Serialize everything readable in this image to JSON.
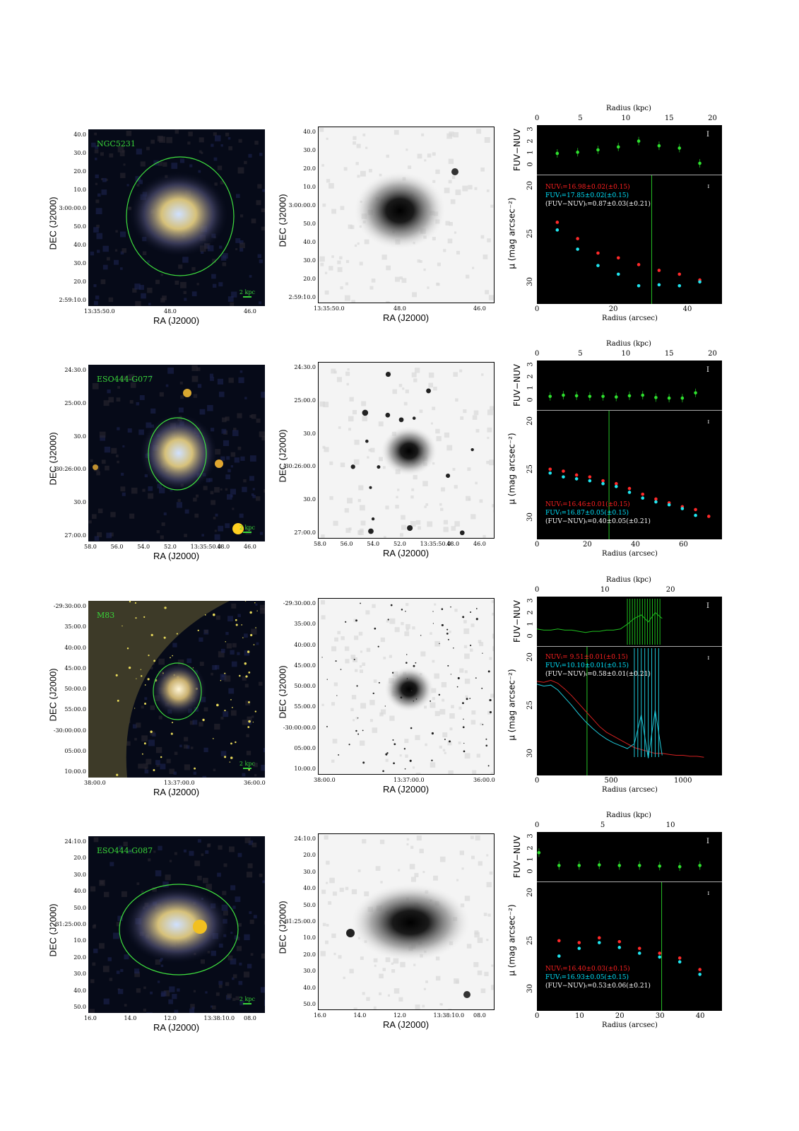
{
  "rows": [
    {
      "name": "NGC5231",
      "scale_label": "2 kpc",
      "color_img": {
        "dec_ticks": [
          "40.0",
          "30.0",
          "20.0",
          "10.0",
          "3:00:00.0",
          "50.0",
          "40.0",
          "30.0",
          "20.0",
          "2:59:10.0"
        ],
        "ra_ticks": [
          "13:35:50.0",
          "48.0",
          "46.0"
        ]
      },
      "gray_img": {
        "dec_ticks": [
          "40.0",
          "30.0",
          "20.0",
          "10.0",
          "3:00:00.0",
          "50.0",
          "40.0",
          "30.0",
          "20.0",
          "2:59:10.0"
        ],
        "ra_ticks": [
          "13:35:50.0",
          "48.0",
          "46.0"
        ]
      },
      "profile": {
        "kpc_ticks": [
          "0",
          "5",
          "10",
          "15",
          "20"
        ],
        "arcsec_ticks": [
          "0",
          "20",
          "40"
        ],
        "top_yticks": [
          "3",
          "2",
          "1",
          "0"
        ],
        "bot_yticks": [
          "20",
          "25",
          "30"
        ],
        "legend": {
          "nuv": "NUVₜ=16.98±0.02(±0.15)",
          "fuv": "FUVₜ=17.85±0.02(±0.15)",
          "col": "(FUV−NUV)ₜ=0.87±0.03(±0.21)"
        }
      }
    },
    {
      "name": "ESO444-G077",
      "scale_label": "2 kpc",
      "color_img": {
        "dec_ticks": [
          "24:30.0",
          "25:00.0",
          "30.0",
          "-30:26:00.0",
          "30.0",
          "27:00.0"
        ],
        "ra_ticks": [
          "58.0",
          "56.0",
          "54.0",
          "52.0",
          "13:35:50.0",
          "48.0",
          "46.0"
        ]
      },
      "gray_img": {
        "dec_ticks": [
          "24:30.0",
          "25:00.0",
          "30.0",
          "-30:26:00.0",
          "30.0",
          "27:00.0"
        ],
        "ra_ticks": [
          "58.0",
          "56.0",
          "54.0",
          "52.0",
          "13:35:50.0",
          "48.0",
          "46.0"
        ]
      },
      "profile": {
        "kpc_ticks": [
          "0",
          "5",
          "10",
          "15",
          "20"
        ],
        "arcsec_ticks": [
          "0",
          "20",
          "40",
          "60"
        ],
        "top_yticks": [
          "3",
          "2",
          "1",
          "0"
        ],
        "bot_yticks": [
          "20",
          "25",
          "30"
        ],
        "legend": {
          "nuv": "NUVₜ=16.46±0.01(±0.15)",
          "fuv": "FUVₜ=16.87±0.05(±0.15)",
          "col": "(FUV−NUV)ₜ=0.40±0.05(±0.21)"
        }
      }
    },
    {
      "name": "M83",
      "scale_label": "2 kpc",
      "color_img": {
        "dec_ticks": [
          "-29:30:00.0",
          "35:00.0",
          "40:00.0",
          "45:00.0",
          "50:00.0",
          "55:00.0",
          "-30:00:00.0",
          "05:00.0",
          "10:00.0"
        ],
        "ra_ticks": [
          "38:00.0",
          "13:37:00.0",
          "36:00.0"
        ]
      },
      "gray_img": {
        "dec_ticks": [
          "-29:30:00.0",
          "35:00.0",
          "40:00.0",
          "45:00.0",
          "50:00.0",
          "55:00.0",
          "-30:00:00.0",
          "05:00.0",
          "10:00.0"
        ],
        "ra_ticks": [
          "38:00.0",
          "13:37:00.0",
          "36:00.0"
        ]
      },
      "profile": {
        "kpc_ticks": [
          "0",
          "10",
          "20"
        ],
        "arcsec_ticks": [
          "0",
          "500",
          "1000"
        ],
        "top_yticks": [
          "3",
          "2",
          "1",
          "0"
        ],
        "bot_yticks": [
          "20",
          "25",
          "30"
        ],
        "legend": {
          "nuv": "NUVₜ= 9.51±0.01(±0.15)",
          "fuv": "FUVₜ=10.10±0.01(±0.15)",
          "col": "(FUV−NUV)ₜ=0.58±0.01(±0.21)"
        }
      }
    },
    {
      "name": "ESO444-G087",
      "scale_label": "2 kpc",
      "color_img": {
        "dec_ticks": [
          "24:10.0",
          "20.0",
          "30.0",
          "40.0",
          "50.0",
          "-31:25:00.0",
          "10.0",
          "20.0",
          "30.0",
          "40.0",
          "50.0"
        ],
        "ra_ticks": [
          "16.0",
          "14.0",
          "12.0",
          "13:38:10.0",
          "08.0"
        ]
      },
      "gray_img": {
        "dec_ticks": [
          "24:10.0",
          "20.0",
          "30.0",
          "40.0",
          "50.0",
          "-31:25:00.0",
          "10.0",
          "20.0",
          "30.0",
          "40.0",
          "50.0"
        ],
        "ra_ticks": [
          "16.0",
          "14.0",
          "12.0",
          "13:38:10.0",
          "08.0"
        ]
      },
      "profile": {
        "kpc_ticks": [
          "0",
          "5",
          "10"
        ],
        "arcsec_ticks": [
          "0",
          "10",
          "20",
          "30",
          "40"
        ],
        "top_yticks": [
          "3",
          "2",
          "1",
          "0"
        ],
        "bot_yticks": [
          "20",
          "25",
          "30"
        ],
        "legend": {
          "nuv": "NUVₜ=16.40±0.03(±0.15)",
          "fuv": "FUVₜ=16.93±0.05(±0.15)",
          "col": "(FUV−NUV)ₜ=0.53±0.06(±0.21)"
        }
      }
    }
  ],
  "labels": {
    "dec_axis": "DEC (J2000)",
    "ra_axis": "RA (J2000)",
    "radius_kpc": "Radius (kpc)",
    "radius_arcsec": "Radius (arcsec)",
    "color_axis": "FUV−NUV",
    "mu_axis": "μ (mag arcsec⁻²)"
  },
  "chart_data": [
    {
      "type": "scatter",
      "title": "NGC5231",
      "xlabel": "Radius (arcsec)",
      "x2label": "Radius (kpc)",
      "xlim": [
        0,
        50
      ],
      "aperture_radius": 31,
      "color_profile": {
        "ylabel": "FUV−NUV",
        "ylim": [
          -0.5,
          3
        ],
        "x": [
          5.5,
          11,
          16.5,
          22,
          27.5,
          33,
          38.5,
          44
        ],
        "y": [
          0.95,
          1.05,
          1.25,
          1.5,
          2.0,
          1.6,
          1.4,
          0.1
        ]
      },
      "surface_brightness": {
        "ylabel": "μ (mag arcsec⁻²)",
        "ylim": [
          32,
          19.5
        ],
        "series": [
          {
            "name": "NUV",
            "x": [
              5.5,
              11,
              16.5,
              22,
              27.5,
              33,
              38.5,
              44
            ],
            "y": [
              23.8,
              25.5,
              27.0,
              27.5,
              28.2,
              28.8,
              29.2,
              29.8
            ]
          },
          {
            "name": "FUV",
            "x": [
              5.5,
              11,
              16.5,
              22,
              27.5,
              33,
              38.5,
              44
            ],
            "y": [
              24.6,
              26.6,
              28.3,
              29.2,
              30.4,
              30.3,
              30.4,
              30.0
            ]
          }
        ]
      }
    },
    {
      "type": "scatter",
      "title": "ESO444-G077",
      "xlabel": "Radius (arcsec)",
      "x2label": "Radius (kpc)",
      "xlim": [
        0,
        77
      ],
      "aperture_radius": 30,
      "color_profile": {
        "ylabel": "FUV−NUV",
        "ylim": [
          -0.5,
          3
        ],
        "x": [
          5.5,
          11,
          16.5,
          22,
          27.5,
          33,
          38.5,
          44,
          49.5,
          55,
          60.5,
          66
        ],
        "y": [
          0.3,
          0.4,
          0.35,
          0.3,
          0.3,
          0.25,
          0.35,
          0.4,
          0.2,
          0.15,
          0.15,
          0.6
        ]
      },
      "surface_brightness": {
        "ylabel": "μ (mag arcsec⁻²)",
        "ylim": [
          32,
          19.5
        ],
        "series": [
          {
            "name": "NUV",
            "x": [
              5.5,
              11,
              16.5,
              22,
              27.5,
              33,
              38.5,
              44,
              49.5,
              55,
              60.5,
              66,
              71.5
            ],
            "y": [
              25.0,
              25.2,
              25.6,
              25.8,
              26.2,
              26.5,
              27.0,
              27.6,
              28.1,
              28.5,
              28.9,
              29.2,
              29.9
            ]
          },
          {
            "name": "FUV",
            "x": [
              5.5,
              11,
              16.5,
              22,
              27.5,
              33,
              38.5,
              44,
              49.5,
              55,
              60.5,
              66
            ],
            "y": [
              25.4,
              25.8,
              26.0,
              26.2,
              26.5,
              26.8,
              27.4,
              28.0,
              28.4,
              28.7,
              29.1,
              29.8
            ]
          }
        ]
      }
    },
    {
      "type": "line",
      "title": "M83",
      "xlabel": "Radius (arcsec)",
      "x2label": "Radius (kpc)",
      "xlim": [
        0,
        1330
      ],
      "aperture_radius": 360,
      "color_profile": {
        "ylabel": "FUV−NUV",
        "ylim": [
          -0.5,
          3
        ],
        "x": [
          0,
          50,
          100,
          150,
          200,
          250,
          300,
          350,
          400,
          450,
          500,
          550,
          600,
          650,
          700,
          750,
          800,
          850,
          900
        ],
        "y": [
          0.6,
          0.5,
          0.5,
          0.6,
          0.5,
          0.5,
          0.4,
          0.3,
          0.4,
          0.4,
          0.5,
          0.5,
          0.6,
          1.0,
          1.5,
          1.8,
          1.2,
          2.0,
          1.5
        ]
      },
      "surface_brightness": {
        "ylabel": "μ (mag arcsec⁻²)",
        "ylim": [
          32,
          19.5
        ],
        "series": [
          {
            "name": "NUV",
            "x": [
              0,
              50,
              100,
              150,
              200,
              250,
              300,
              350,
              400,
              450,
              500,
              550,
              600,
              650,
              700,
              750,
              800,
              850,
              900,
              950,
              1000,
              1050,
              1100,
              1150,
              1200
            ],
            "y": [
              22.5,
              22.6,
              22.4,
              22.7,
              23.3,
              24.0,
              24.8,
              25.6,
              26.4,
              27.2,
              27.8,
              28.2,
              28.6,
              29.0,
              29.4,
              29.6,
              29.8,
              30.0,
              30.0,
              30.1,
              30.2,
              30.2,
              30.3,
              30.3,
              30.4
            ]
          },
          {
            "name": "FUV",
            "x": [
              0,
              50,
              100,
              150,
              200,
              250,
              300,
              350,
              400,
              450,
              500,
              550,
              600,
              650,
              700,
              750,
              800,
              850,
              900
            ],
            "y": [
              22.8,
              23.0,
              22.9,
              23.4,
              24.2,
              25.0,
              25.9,
              26.7,
              27.4,
              28.0,
              28.5,
              28.9,
              29.2,
              29.5,
              29.0,
              26.0,
              30.5,
              25.5,
              30.2
            ]
          }
        ]
      }
    },
    {
      "type": "scatter",
      "title": "ESO444-G087",
      "xlabel": "Radius (arcsec)",
      "x2label": "Radius (kpc)",
      "xlim": [
        0,
        46
      ],
      "aperture_radius": 31,
      "color_profile": {
        "ylabel": "FUV−NUV",
        "ylim": [
          -0.5,
          3
        ],
        "x": [
          0.5,
          5.5,
          10.5,
          15.5,
          20.5,
          25.5,
          30.5,
          35.5,
          40.5
        ],
        "y": [
          1.6,
          0.5,
          0.5,
          0.55,
          0.5,
          0.5,
          0.45,
          0.4,
          0.5
        ]
      },
      "surface_brightness": {
        "ylabel": "μ (mag arcsec⁻²)",
        "ylim": [
          32,
          19.5
        ],
        "series": [
          {
            "name": "NUV",
            "x": [
              5.5,
              10.5,
              15.5,
              20.5,
              25.5,
              30.5,
              35.5,
              40.5
            ],
            "y": [
              25.0,
              25.2,
              24.7,
              25.1,
              25.8,
              26.3,
              26.8,
              28.0
            ]
          },
          {
            "name": "FUV",
            "x": [
              5.5,
              10.5,
              15.5,
              20.5,
              25.5,
              30.5,
              35.5,
              40.5
            ],
            "y": [
              26.6,
              25.8,
              25.2,
              25.7,
              26.3,
              26.7,
              27.2,
              28.5
            ]
          }
        ]
      }
    }
  ]
}
